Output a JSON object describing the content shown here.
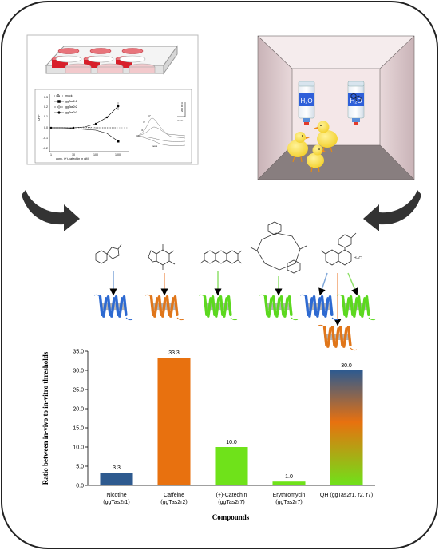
{
  "assay_plot": {
    "legend": [
      "mock",
      "ggTas2r1",
      "ggTas2r2",
      "ggTas2r7"
    ],
    "y_axis_label": "ΔF/F",
    "y_ticks": [
      "0.3",
      "0.2",
      "0.1",
      "0.0",
      "-0.1",
      "-0.2"
    ],
    "x_ticks": [
      "1",
      "10",
      "100",
      "1000"
    ],
    "x_axis_label": "conc. (+)-catechin in µM",
    "trace_scale_label": "200 RFU",
    "trace_time_label": "2 min",
    "trace_labels": [
      "r7",
      "r2",
      "r1",
      "mock"
    ]
  },
  "chamber": {
    "bottle_left_label": "H₂O",
    "bottle_right_label": "H₂O"
  },
  "receptors": {
    "qh_extra_label": "H–Cl"
  },
  "chart_data": {
    "type": "bar",
    "categories": [
      "Nicotine (ggTas2r1)",
      "Caffeine (ggTas2r2)",
      "(+)-Catechin (ggTas2r7)",
      "Erythromycin (ggTas2r7)",
      "QH (ggTas2r1, r2, r7)"
    ],
    "category_lines": [
      [
        "Nicotine",
        "(ggTas2r1)"
      ],
      [
        "Caffeine",
        "(ggTas2r2)"
      ],
      [
        "(+)-Catechin",
        "(ggTas2r7)"
      ],
      [
        "Erythromycin",
        "(ggTas2r7)"
      ],
      [
        "QH (ggTas2r1, r2, r7)",
        ""
      ]
    ],
    "values": [
      3.3,
      33.3,
      10.0,
      1.0,
      30.0
    ],
    "value_labels": [
      "3.3",
      "33.3",
      "10.0",
      "1.0",
      "30.0"
    ],
    "colors": [
      "#2e5a8f",
      "#e8710f",
      "#6fe21a",
      "#6fe21a",
      "gradient"
    ],
    "ylabel": "Ratio between in-vivo to in-vitro thresholds",
    "xlabel": "Compounds",
    "ylim": [
      0,
      35
    ],
    "yticks": [
      0.0,
      5.0,
      10.0,
      15.0,
      20.0,
      25.0,
      30.0,
      35.0
    ],
    "ytick_labels": [
      "0.0",
      "5.0",
      "10.0",
      "15.0",
      "20.0",
      "25.0",
      "30.0",
      "35.0"
    ],
    "grid": false
  }
}
